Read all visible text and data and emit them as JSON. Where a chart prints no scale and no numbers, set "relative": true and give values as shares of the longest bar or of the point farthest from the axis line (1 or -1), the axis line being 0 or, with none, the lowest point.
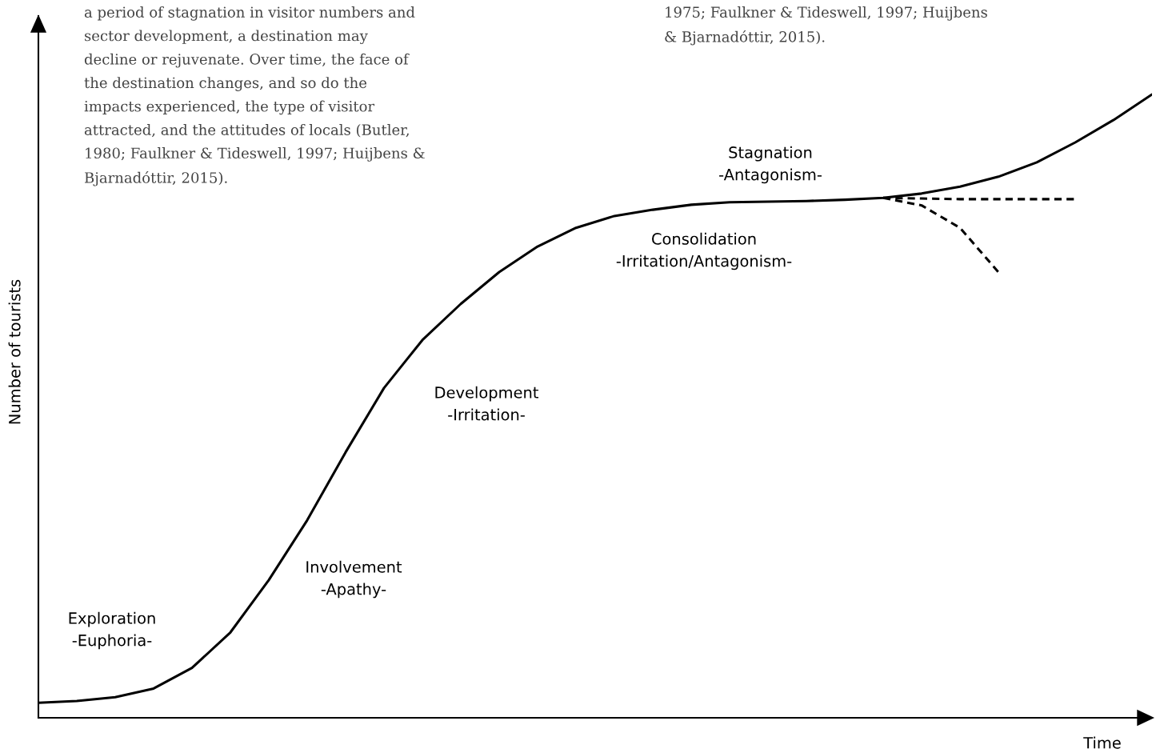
{
  "chart_data": {
    "type": "line",
    "relative": true,
    "xlabel": "Time",
    "ylabel": "Number of tourists",
    "categories": [
      null,
      null,
      null,
      null,
      null,
      null,
      null,
      null,
      null,
      null,
      null,
      null,
      null,
      null,
      null,
      null,
      null,
      null,
      null,
      null,
      null,
      null,
      null,
      null,
      null,
      null,
      null,
      null,
      null,
      null
    ],
    "series": [
      {
        "color": "#000000",
        "line_style": "solid",
        "values": [
          0.024,
          0.027,
          0.033,
          0.047,
          0.08,
          0.137,
          0.221,
          0.317,
          0.426,
          0.529,
          0.606,
          0.664,
          0.715,
          0.756,
          0.786,
          0.805,
          0.815,
          0.823,
          0.827,
          0.828,
          0.829,
          0.831,
          0.834,
          0.841,
          0.852,
          0.868,
          0.891,
          0.923,
          0.959,
          1
        ]
      },
      {
        "color": "#000000",
        "line_style": "dashed",
        "values": [
          null,
          null,
          null,
          null,
          null,
          null,
          null,
          null,
          null,
          null,
          null,
          null,
          null,
          null,
          null,
          null,
          null,
          null,
          null,
          null,
          null,
          null,
          0.834,
          0.833,
          0.832,
          0.832,
          0.832,
          0.832,
          null,
          null
        ]
      },
      {
        "color": "#000000",
        "line_style": "dashed",
        "values": [
          null,
          null,
          null,
          null,
          null,
          null,
          null,
          null,
          null,
          null,
          null,
          null,
          null,
          null,
          null,
          null,
          null,
          null,
          null,
          null,
          null,
          null,
          0.834,
          0.822,
          0.786,
          0.715,
          null,
          null,
          null,
          null
        ]
      }
    ],
    "annotations": [
      "Exploration\n-Euphoria-",
      "Involvement\n-Apathy-",
      "Development\n-Irritation-",
      "Consolidation\n-Irritation/Antagonism-",
      "Stagnation\n-Antagonism-",
      "a period of stagnation in visitor numbers and\nsector development, a destination may\ndecline or rejuvenate. Over time, the face of\nthe destination changes, and so do the\nimpacts experienced, the type of visitor\nattracted, and the attitudes of locals (Butler,\n1980; Faulkner & Tideswell, 1997; Huijbens &\nBjarnadóttir, 2015).",
      "1975; Faulkner & Tideswell, 1997; Huijbens\n& Bjarnadóttir, 2015)."
    ]
  }
}
